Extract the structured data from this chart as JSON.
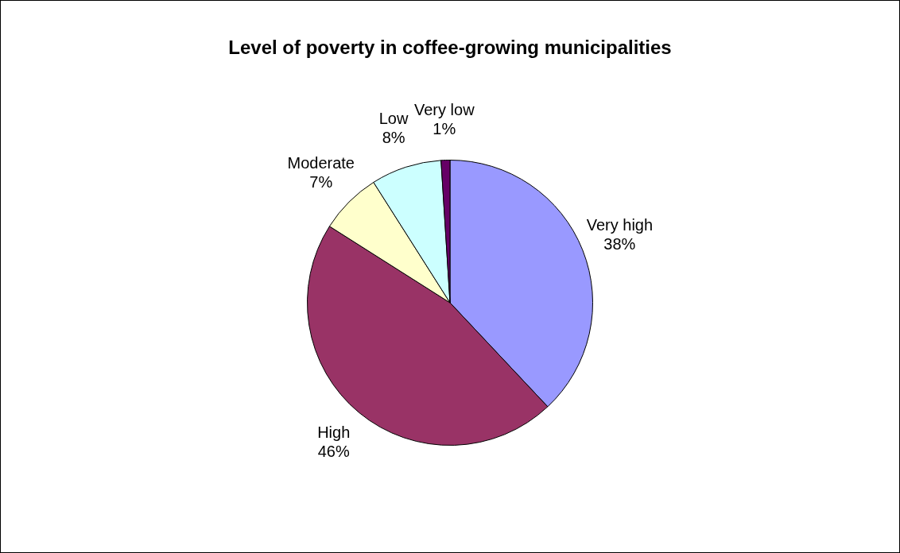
{
  "chart_data": {
    "type": "pie",
    "title": "Level of poverty in coffee-growing municipalities",
    "categories": [
      "Very high",
      "High",
      "Moderate",
      "Low",
      "Very low"
    ],
    "values": [
      38,
      46,
      7,
      8,
      1
    ],
    "colors": [
      "#9999ff",
      "#993366",
      "#ffffcc",
      "#ccffff",
      "#660066"
    ],
    "value_labels": [
      "38%",
      "46%",
      "7%",
      "8%",
      "1%"
    ]
  }
}
